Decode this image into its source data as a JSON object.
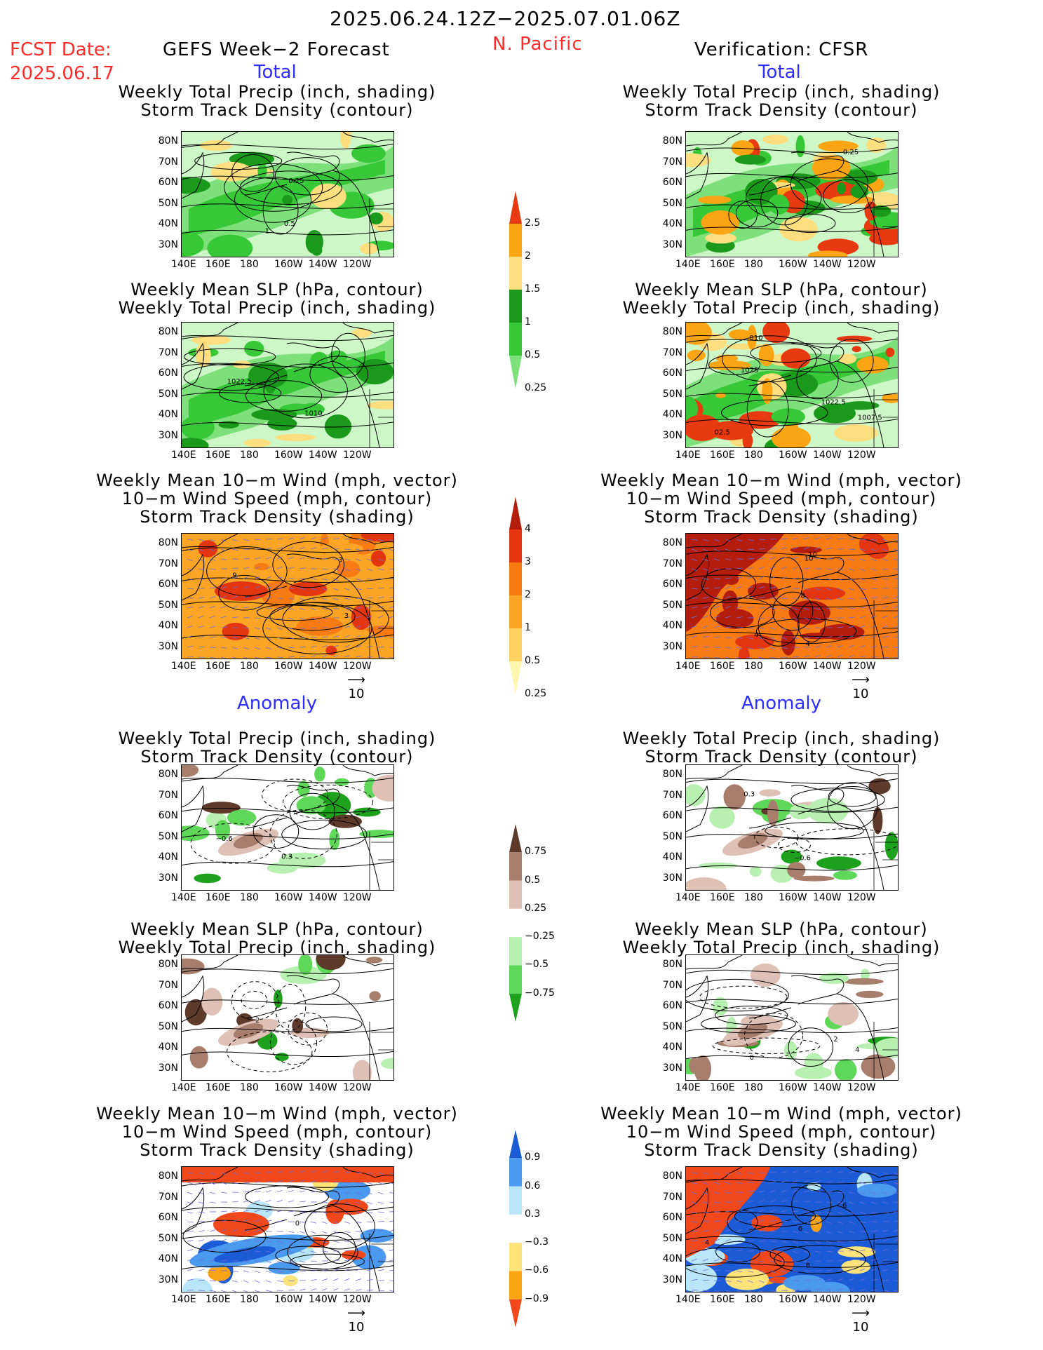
{
  "header": {
    "date_range": "2025.06.24.12Z−2025.07.01.06Z",
    "fcst_label": "FCST Date:",
    "fcst_date": "2025.06.17",
    "left_title": "GEFS Week−2 Forecast",
    "region": "N. Pacific",
    "right_title": "Verification: CFSR"
  },
  "sections": {
    "total": "Total",
    "anomaly": "Anomaly"
  },
  "panel_titles": {
    "precip_storm": [
      "Weekly Total Precip (inch, shading)",
      "Storm Track Density (contour)"
    ],
    "slp_precip": [
      "Weekly Mean SLP (hPa, contour)",
      "Weekly Total Precip (inch, shading)"
    ],
    "wind": [
      "Weekly Mean 10−m Wind (mph, vector)",
      "10−m Wind Speed (mph, contour)",
      "Storm Track Density (shading)"
    ]
  },
  "axes": {
    "lat": [
      "80N",
      "70N",
      "60N",
      "50N",
      "40N",
      "30N"
    ],
    "lon": [
      "140E",
      "160E",
      "180",
      "160W",
      "140W",
      "120W"
    ]
  },
  "vector_ref": "10",
  "colorbars": {
    "precip_total": [
      "2.5",
      "2",
      "1.5",
      "1",
      "0.5",
      "0.25"
    ],
    "std_total": [
      "4",
      "3",
      "2",
      "1",
      "0.5",
      "0.25"
    ],
    "precip_anom": [
      "0.75",
      "0.5",
      "0.25",
      "−0.25",
      "−0.5",
      "−0.75"
    ],
    "std_anom": [
      "0.9",
      "0.6",
      "0.3",
      "−0.3",
      "−0.6",
      "−0.9"
    ]
  },
  "contour_labels": {
    "p1l": [
      "1",
      "0.5",
      "0.25"
    ],
    "p1r": [
      "0.25"
    ],
    "p2l": [
      "1010",
      "1022.5"
    ],
    "p2r": [
      "02.5",
      "1007.5",
      "010",
      "1025",
      "1022.5"
    ],
    "p3l": [
      "3",
      "3",
      "9"
    ],
    "p3r": [
      "4",
      "8",
      "4",
      "10",
      "10"
    ],
    "p4l": [
      "−0.6",
      "0.3"
    ],
    "p4r": [
      "−0.6",
      "0.3"
    ],
    "p5l": [
      "2"
    ],
    "p5r": [
      "2",
      "4",
      "0"
    ],
    "p6l": [
      "0"
    ],
    "p6r": [
      "4",
      "6",
      "8",
      "6"
    ]
  },
  "chart_data": [
    {
      "type": "heatmap",
      "title": "GEFS Week−2 Forecast Total: Weekly Total Precip (inch, shading) / Storm Track Density (contour)"
    },
    {
      "type": "heatmap",
      "title": "Verification: CFSR Total: Weekly Total Precip (inch, shading) / Storm Track Density (contour)"
    },
    {
      "type": "heatmap",
      "title": "GEFS Week−2 Forecast Total: Weekly Mean SLP (hPa, contour) / Weekly Total Precip (inch, shading)"
    },
    {
      "type": "heatmap",
      "title": "Verification: CFSR Total: Weekly Mean SLP (hPa, contour) / Weekly Total Precip (inch, shading)"
    },
    {
      "type": "heatmap",
      "title": "GEFS Week−2 Forecast Total: Weekly Mean 10−m Wind / 10−m Wind Speed / Storm Track Density (shading)"
    },
    {
      "type": "heatmap",
      "title": "Verification: CFSR Total: Weekly Mean 10−m Wind / 10−m Wind Speed / Storm Track Density (shading)"
    },
    {
      "type": "heatmap",
      "title": "GEFS Week−2 Forecast Anomaly: Weekly Total Precip (inch, shading) / Storm Track Density (contour)"
    },
    {
      "type": "heatmap",
      "title": "Verification: CFSR Anomaly: Weekly Total Precip (inch, shading) / Storm Track Density (contour)"
    },
    {
      "type": "heatmap",
      "title": "GEFS Week−2 Forecast Anomaly: Weekly Mean SLP (hPa, contour) / Weekly Total Precip (inch, shading)"
    },
    {
      "type": "heatmap",
      "title": "Verification: CFSR Anomaly: Weekly Mean SLP (hPa, contour) / Weekly Total Precip (inch, shading)"
    },
    {
      "type": "heatmap",
      "title": "GEFS Week−2 Forecast Anomaly: Weekly Mean 10−m Wind / 10−m Wind Speed / Storm Track Density (shading)"
    },
    {
      "type": "heatmap",
      "title": "Verification: CFSR Anomaly: Weekly Mean 10−m Wind / 10−m Wind Speed / Storm Track Density (shading)"
    }
  ],
  "colors": {
    "precip": [
      "#cdf7c7",
      "#7ee07a",
      "#36c836",
      "#1a991a",
      "#fddf80",
      "#fba515",
      "#e83a10"
    ],
    "std": [
      "#fff6b0",
      "#fdd25e",
      "#fca423",
      "#f77b12",
      "#e3350f",
      "#b41c0b"
    ],
    "precip_anom": [
      "#5e3a2a",
      "#a77d6c",
      "#dfc0b5",
      "#ffffff",
      "#b7f0b0",
      "#5fd85a",
      "#1ea21e"
    ],
    "std_anom": [
      "#1b5bd6",
      "#4a9af0",
      "#b8e6f8",
      "#ffffff",
      "#fde37a",
      "#fba515",
      "#f0481a"
    ],
    "title_red": "#ff2b2b",
    "title_blue": "#2d2dff"
  }
}
